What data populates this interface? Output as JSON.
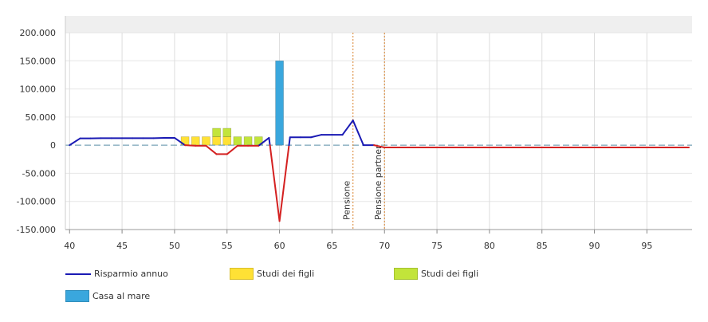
{
  "chart_data": {
    "type": "line",
    "x_ticks": [
      40,
      45,
      50,
      55,
      60,
      65,
      70,
      75,
      80,
      85,
      90,
      95
    ],
    "y_ticks": [
      {
        "value": 200000,
        "label": "200.000"
      },
      {
        "value": 150000,
        "label": "150.000"
      },
      {
        "value": 100000,
        "label": "100.000"
      },
      {
        "value": 50000,
        "label": "50.000"
      },
      {
        "value": 0,
        "label": "0"
      },
      {
        "value": -50000,
        "label": "-50.000"
      },
      {
        "value": -100000,
        "label": "-100.000"
      },
      {
        "value": -150000,
        "label": "-150.000"
      }
    ],
    "xlim": [
      39.6,
      99.3
    ],
    "ylim": [
      -150000,
      200000
    ],
    "grid": true,
    "legend_position": "bottom",
    "series": [
      {
        "name": "Risparmio annuo",
        "kind": "line",
        "color": "#1a1ab4",
        "points": [
          [
            40,
            0
          ],
          [
            41,
            12000
          ],
          [
            42,
            12000
          ],
          [
            43,
            12500
          ],
          [
            44,
            12500
          ],
          [
            45,
            12500
          ],
          [
            46,
            12500
          ],
          [
            47,
            12500
          ],
          [
            48,
            12500
          ],
          [
            49,
            13000
          ],
          [
            50,
            13000
          ],
          [
            51,
            0
          ],
          [
            52,
            -1000
          ],
          [
            53,
            -1000
          ],
          [
            54,
            -16000
          ],
          [
            55,
            -16000
          ],
          [
            56,
            -1000
          ],
          [
            57,
            -1000
          ],
          [
            58,
            -1000
          ],
          [
            59,
            13000
          ],
          [
            60,
            -135000
          ],
          [
            61,
            14000
          ],
          [
            62,
            14000
          ],
          [
            63,
            14000
          ],
          [
            64,
            18500
          ],
          [
            65,
            18500
          ],
          [
            66,
            18500
          ],
          [
            67,
            44000
          ],
          [
            68,
            0
          ],
          [
            69,
            0
          ],
          [
            70,
            -4000
          ],
          [
            71,
            -4000
          ],
          [
            72,
            -4000
          ],
          [
            73,
            -4000
          ],
          [
            74,
            -4000
          ],
          [
            75,
            -4000
          ],
          [
            80,
            -4000
          ],
          [
            85,
            -4000
          ],
          [
            90,
            -4000
          ],
          [
            95,
            -4000
          ],
          [
            99,
            -4000
          ]
        ],
        "negative_color": "#d42020"
      },
      {
        "name": "Studi dei figli",
        "kind": "bar",
        "color": "#ffe135",
        "points": [
          [
            51,
            15000
          ],
          [
            52,
            15000
          ],
          [
            53,
            15000
          ],
          [
            54,
            15000
          ],
          [
            55,
            15000
          ],
          [
            56,
            0
          ],
          [
            57,
            0
          ],
          [
            58,
            0
          ]
        ]
      },
      {
        "name": "Studi dei figli",
        "kind": "bar",
        "color": "#c2e43a",
        "points": [
          [
            51,
            0
          ],
          [
            52,
            0
          ],
          [
            53,
            0
          ],
          [
            54,
            15000
          ],
          [
            55,
            15000
          ],
          [
            56,
            15000
          ],
          [
            57,
            15000
          ],
          [
            58,
            15000
          ]
        ]
      },
      {
        "name": "Casa al mare",
        "kind": "bar",
        "color": "#3aa7dd",
        "points": [
          [
            60,
            150000
          ]
        ]
      }
    ],
    "annotations": [
      {
        "label": "Pensione",
        "x": 67,
        "color": "#d9822b"
      },
      {
        "label": "Pensione partner",
        "x": 70,
        "color": "#d9822b"
      }
    ]
  }
}
